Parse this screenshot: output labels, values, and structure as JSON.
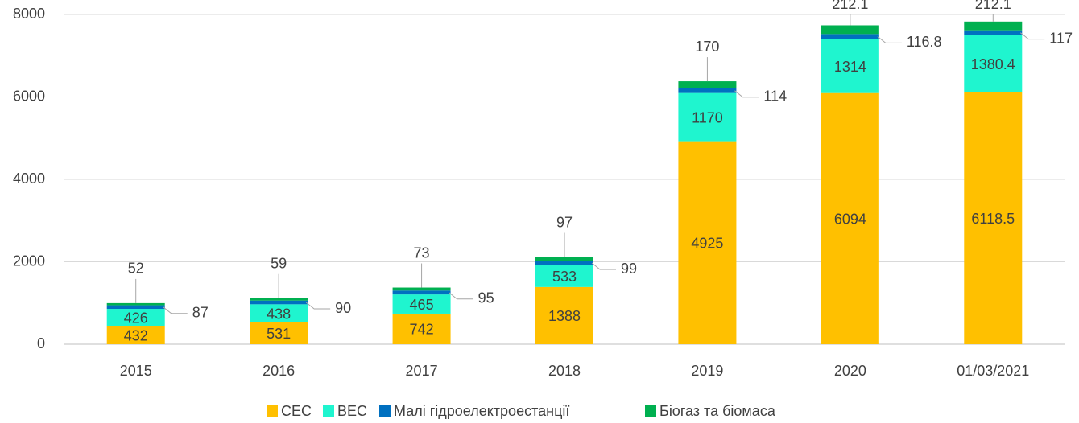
{
  "chart_data": {
    "type": "stacked_bar",
    "categories": [
      "2015",
      "2016",
      "2017",
      "2018",
      "2019",
      "2020",
      "01/03/2021"
    ],
    "series": [
      {
        "name": "СЕС",
        "color": "#ffc000",
        "values": [
          432,
          531,
          742,
          1388,
          4925,
          6094,
          6118.5
        ]
      },
      {
        "name": "ВЕС",
        "color": "#1ff5cf",
        "values": [
          426,
          438,
          465,
          533,
          1170,
          1314,
          1380.4
        ]
      },
      {
        "name": "Малі гідроелектроестанції",
        "color": "#0070c0",
        "values": [
          87,
          90,
          95,
          99,
          114,
          116.8,
          117
        ]
      },
      {
        "name": "Біогаз та біомаса",
        "color": "#00b050",
        "values": [
          52,
          59,
          73,
          97,
          170,
          212.1,
          212.1
        ]
      }
    ],
    "ylim": [
      0,
      8000
    ],
    "yticks": [
      0,
      2000,
      4000,
      6000,
      8000
    ],
    "grid": true,
    "legend": "bottom"
  }
}
